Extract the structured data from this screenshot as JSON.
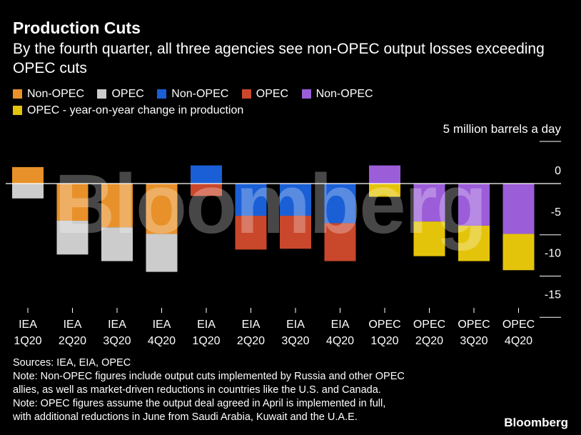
{
  "header": {
    "title": "Production Cuts",
    "subtitle": "By the fourth quarter, all three agencies see non-OPEC output losses exceeding OPEC cuts"
  },
  "legend": [
    {
      "label": "Non-OPEC",
      "color": "#e8912a"
    },
    {
      "label": "OPEC",
      "color": "#cccccc"
    },
    {
      "label": "Non-OPEC",
      "color": "#1a5fd6"
    },
    {
      "label": "OPEC",
      "color": "#c9472a"
    },
    {
      "label": "Non-OPEC",
      "color": "#9b5dd8"
    },
    {
      "label": "OPEC - year-on-year change in production",
      "color": "#e4c40a"
    }
  ],
  "unit_label": "5 million barrels a day",
  "watermark": "Bloomberg",
  "footer": {
    "sources": "Sources: IEA, EIA, OPEC",
    "note_lines": [
      "Note: Non-OPEC figures include output cuts implemented by Russia and other OPEC",
      "allies, as well as market-driven reductions in countries like the U.S. and Canada.",
      "Note: OPEC figures assume the output deal agreed in April is implemented in full,",
      "with additional reductions in June from Saudi Arabia, Kuwait and the U.A.E."
    ]
  },
  "brand": "Bloomberg",
  "chart_data": {
    "type": "bar",
    "stacked": true,
    "categories": [
      [
        "IEA",
        "1Q20"
      ],
      [
        "IEA",
        "2Q20"
      ],
      [
        "IEA",
        "3Q20"
      ],
      [
        "IEA",
        "4Q20"
      ],
      [
        "EIA",
        "1Q20"
      ],
      [
        "EIA",
        "2Q20"
      ],
      [
        "EIA",
        "3Q20"
      ],
      [
        "EIA",
        "4Q20"
      ],
      [
        "OPEC",
        "1Q20"
      ],
      [
        "OPEC",
        "2Q20"
      ],
      [
        "OPEC",
        "3Q20"
      ],
      [
        "OPEC",
        "4Q20"
      ]
    ],
    "series": [
      {
        "name": "Non-OPEC",
        "color": "#e8912a",
        "values": [
          2.0,
          -4.5,
          -5.3,
          -6.1,
          null,
          null,
          null,
          null,
          null,
          null,
          null,
          null
        ]
      },
      {
        "name": "OPEC",
        "color": "#cccccc",
        "values": [
          -1.8,
          -4.1,
          -4.1,
          -4.6,
          null,
          null,
          null,
          null,
          null,
          null,
          null,
          null
        ]
      },
      {
        "name": "Non-OPEC",
        "color": "#1a5fd6",
        "values": [
          null,
          null,
          null,
          null,
          2.2,
          -3.9,
          -3.9,
          -4.8,
          null,
          null,
          null,
          null
        ]
      },
      {
        "name": "OPEC",
        "color": "#c9472a",
        "values": [
          null,
          null,
          null,
          null,
          -1.5,
          -4.1,
          -4.0,
          -4.6,
          null,
          null,
          null,
          null
        ]
      },
      {
        "name": "Non-OPEC",
        "color": "#9b5dd8",
        "values": [
          null,
          null,
          null,
          null,
          null,
          null,
          null,
          null,
          2.2,
          -4.6,
          -5.1,
          -6.1
        ]
      },
      {
        "name": "OPEC - year-on-year change in production",
        "color": "#e4c40a",
        "values": [
          null,
          null,
          null,
          null,
          null,
          null,
          null,
          null,
          -1.6,
          -4.2,
          -4.3,
          -4.4
        ]
      }
    ],
    "yticks": [
      0,
      -5,
      -10,
      -15
    ],
    "ylim": [
      -15,
      2.5
    ]
  }
}
